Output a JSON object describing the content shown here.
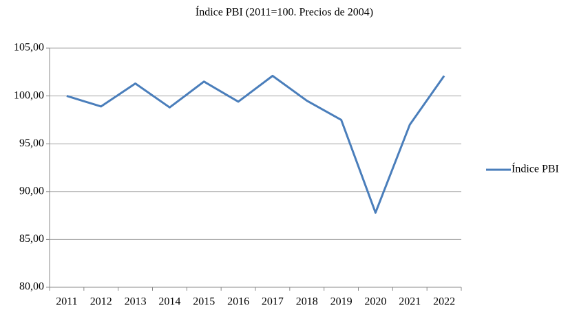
{
  "chart_data": {
    "type": "line",
    "title": "Índice PBI (2011=100. Precios de 2004)",
    "categories": [
      "2011",
      "2012",
      "2013",
      "2014",
      "2015",
      "2016",
      "2017",
      "2018",
      "2019",
      "2020",
      "2021",
      "2022"
    ],
    "series": [
      {
        "name": "Índice PBI",
        "color": "#4a7ebb",
        "values": [
          100.0,
          98.9,
          101.3,
          98.8,
          101.5,
          99.4,
          102.1,
          99.5,
          97.5,
          87.8,
          97.0,
          102.1
        ]
      }
    ],
    "ylim": [
      80,
      105
    ],
    "yticks": [
      {
        "value": 80,
        "label": "80,00"
      },
      {
        "value": 85,
        "label": "85,00"
      },
      {
        "value": 90,
        "label": "90,00"
      },
      {
        "value": 95,
        "label": "95,00"
      },
      {
        "value": 100,
        "label": "100,00"
      },
      {
        "value": 105,
        "label": "105,00"
      }
    ],
    "grid": true,
    "legend": "right"
  }
}
